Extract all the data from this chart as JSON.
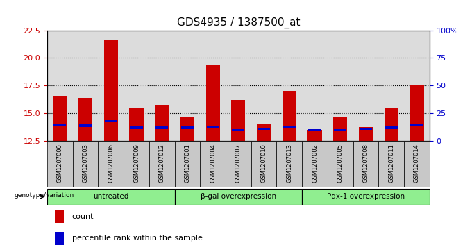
{
  "title": "GDS4935 / 1387500_at",
  "samples": [
    "GSM1207000",
    "GSM1207003",
    "GSM1207006",
    "GSM1207009",
    "GSM1207012",
    "GSM1207001",
    "GSM1207004",
    "GSM1207007",
    "GSM1207010",
    "GSM1207013",
    "GSM1207002",
    "GSM1207005",
    "GSM1207008",
    "GSM1207011",
    "GSM1207014"
  ],
  "count_values": [
    16.5,
    16.4,
    21.6,
    15.5,
    15.8,
    14.7,
    19.4,
    16.2,
    14.0,
    17.0,
    13.5,
    14.7,
    13.8,
    15.5,
    17.5
  ],
  "blue_marker_heights": [
    14.0,
    13.9,
    14.3,
    13.7,
    13.7,
    13.7,
    13.8,
    13.5,
    13.6,
    13.8,
    13.5,
    13.5,
    13.6,
    13.7,
    14.0
  ],
  "ylim": [
    12.5,
    22.5
  ],
  "y_ticks": [
    12.5,
    15.0,
    17.5,
    20.0,
    22.5
  ],
  "right_ylim": [
    0,
    100
  ],
  "right_yticks": [
    0,
    25,
    50,
    75,
    100
  ],
  "right_yticklabels": [
    "0",
    "25",
    "50",
    "75",
    "100%"
  ],
  "groups": [
    {
      "label": "untreated",
      "start": 0,
      "end": 5
    },
    {
      "label": "β-gal overexpression",
      "start": 5,
      "end": 10
    },
    {
      "label": "Pdx-1 overexpression",
      "start": 10,
      "end": 15
    }
  ],
  "group_color": "#90EE90",
  "bar_color": "#CC0000",
  "blue_color": "#0000CC",
  "bar_width": 0.55,
  "xtick_bg_color": "#C8C8C8",
  "plot_bg_color": "#DCDCDC",
  "left_tick_color": "#CC0000",
  "right_tick_color": "#0000CC",
  "genotype_label": "genotype/variation",
  "legend_count": "count",
  "legend_percentile": "percentile rank within the sample",
  "title_fontsize": 11
}
